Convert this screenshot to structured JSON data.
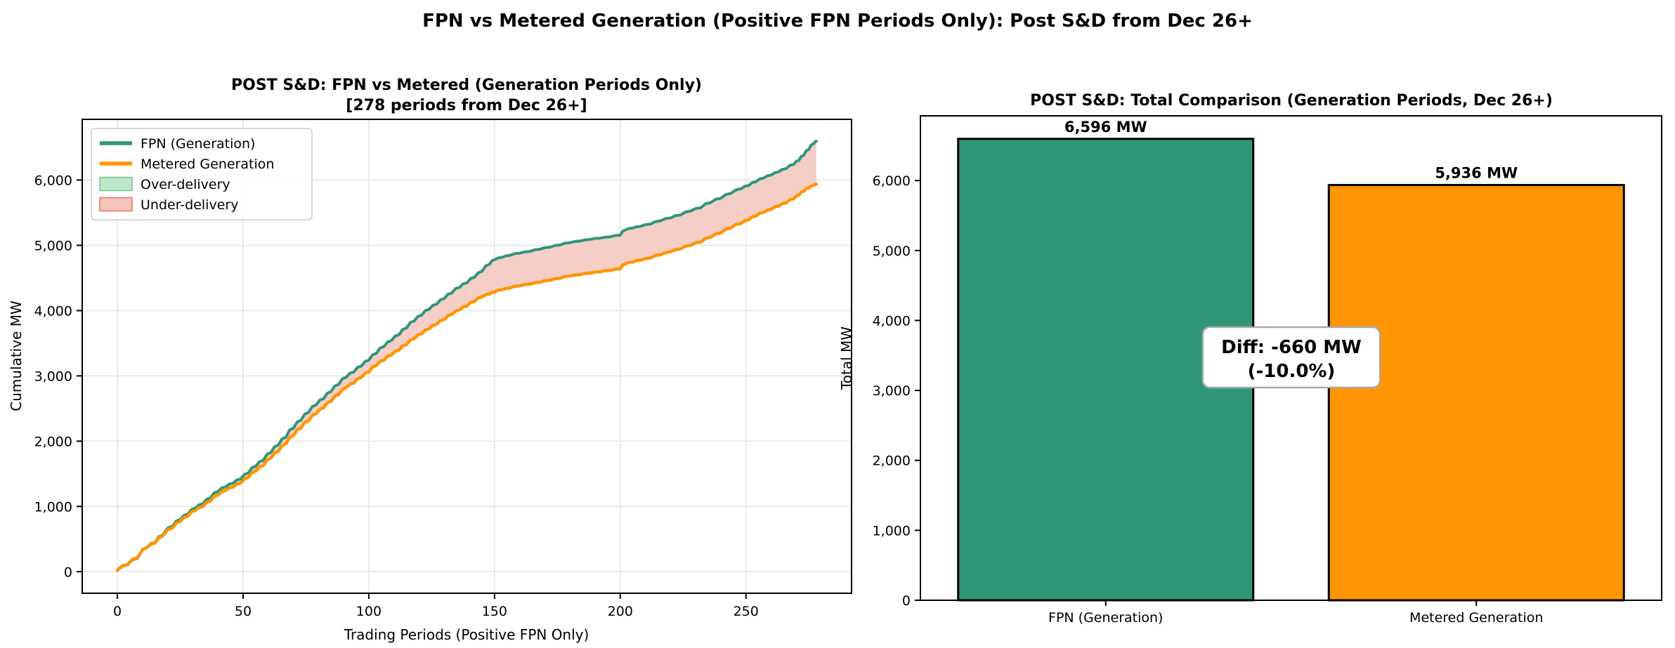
{
  "suptitle": "FPN vs Metered Generation (Positive FPN Periods Only): Post S&D from Dec 26+",
  "colors": {
    "fpn": "#2F9678",
    "metered": "#FF9500",
    "under_fill": "#F5CEC7",
    "over_fill": "#C7EBD3",
    "legend_over_fill": "#BCE7C8",
    "legend_over_edge": "#7CC894",
    "legend_under_fill": "#F5C4BC",
    "legend_under_edge": "#E2756A",
    "grid": "#E5E5E5",
    "spine": "#000000",
    "bar_edge": "#000000",
    "diff_text": "#FF0000",
    "diff_box_edge": "#AAAAAA",
    "diff_box_fill": "#FFFFFF"
  },
  "chart_data": [
    {
      "type": "line",
      "title_line1": "POST S&D: FPN vs Metered (Generation Periods Only)",
      "title_line2": "[278 periods from Dec 26+]",
      "xlabel": "Trading Periods (Positive FPN Only)",
      "ylabel": "Cumulative MW",
      "xlim": [
        -14,
        292
      ],
      "ylim": [
        -330,
        6930
      ],
      "grid": true,
      "legend_position": "upper left",
      "legend_labels": [
        "FPN (Generation)",
        "Metered Generation",
        "Over-delivery",
        "Under-delivery"
      ],
      "x_tick_values": [
        0,
        50,
        100,
        150,
        200,
        250
      ],
      "x_tick_labels": [
        "0",
        "50",
        "100",
        "150",
        "200",
        "250"
      ],
      "y_tick_values": [
        0,
        1000,
        2000,
        3000,
        4000,
        5000,
        6000
      ],
      "y_tick_labels": [
        "0",
        "1,000",
        "2,000",
        "3,000",
        "4,000",
        "5,000",
        "6,000"
      ],
      "x": [
        0,
        4,
        8,
        12,
        15,
        18,
        22,
        25,
        28,
        31,
        34,
        37,
        40,
        43,
        46,
        49,
        52,
        55,
        58,
        61,
        64,
        67,
        70,
        73,
        76,
        79,
        82,
        85,
        88,
        91,
        94,
        97,
        100,
        103,
        106,
        109,
        112,
        115,
        118,
        121,
        124,
        127,
        130,
        133,
        136,
        139,
        142,
        145,
        148,
        150,
        153,
        156,
        160,
        164,
        168,
        172,
        176,
        180,
        184,
        188,
        192,
        196,
        200,
        202,
        205,
        208,
        212,
        216,
        220,
        224,
        228,
        232,
        236,
        240,
        244,
        248,
        251,
        254,
        257,
        260,
        263,
        266,
        269,
        271,
        273,
        275,
        277,
        278
      ],
      "series": [
        {
          "name": "FPN (Generation)",
          "color": "#2F9678",
          "values": [
            20,
            105,
            205,
            380,
            450,
            560,
            700,
            800,
            880,
            975,
            1040,
            1130,
            1230,
            1300,
            1355,
            1420,
            1510,
            1615,
            1705,
            1825,
            1940,
            2060,
            2200,
            2320,
            2440,
            2555,
            2650,
            2760,
            2870,
            2980,
            3060,
            3150,
            3240,
            3345,
            3450,
            3540,
            3630,
            3735,
            3840,
            3930,
            4020,
            4100,
            4185,
            4270,
            4355,
            4425,
            4510,
            4600,
            4710,
            4780,
            4815,
            4845,
            4880,
            4905,
            4940,
            4970,
            5005,
            5040,
            5065,
            5090,
            5110,
            5130,
            5155,
            5235,
            5265,
            5290,
            5325,
            5375,
            5420,
            5465,
            5525,
            5575,
            5655,
            5720,
            5795,
            5865,
            5915,
            5975,
            6030,
            6075,
            6125,
            6175,
            6240,
            6300,
            6380,
            6470,
            6560,
            6596
          ]
        },
        {
          "name": "Metered Generation",
          "color": "#FF9500",
          "values": [
            25,
            110,
            215,
            375,
            440,
            545,
            672,
            770,
            848,
            938,
            998,
            1082,
            1175,
            1243,
            1295,
            1358,
            1442,
            1540,
            1625,
            1738,
            1845,
            1958,
            2085,
            2200,
            2310,
            2420,
            2510,
            2612,
            2715,
            2818,
            2890,
            2975,
            3060,
            3160,
            3240,
            3320,
            3395,
            3480,
            3570,
            3645,
            3720,
            3790,
            3865,
            3940,
            4010,
            4070,
            4140,
            4210,
            4255,
            4285,
            4320,
            4345,
            4380,
            4405,
            4435,
            4465,
            4495,
            4530,
            4550,
            4575,
            4595,
            4615,
            4640,
            4715,
            4745,
            4770,
            4805,
            4855,
            4900,
            4945,
            5000,
            5050,
            5125,
            5190,
            5265,
            5335,
            5390,
            5450,
            5505,
            5550,
            5600,
            5650,
            5715,
            5770,
            5830,
            5880,
            5920,
            5936
          ]
        }
      ],
      "fills": [
        {
          "name": "Over-delivery",
          "rule": "metered_above_fpn",
          "fill": "#C7EBD3"
        },
        {
          "name": "Under-delivery",
          "rule": "fpn_above_metered",
          "fill": "#F5CEC7"
        }
      ]
    },
    {
      "type": "bar",
      "title": "POST S&D: Total Comparison (Generation Periods, Dec 26+)",
      "ylabel": "Total MW",
      "ylim": [
        0,
        6925
      ],
      "grid": false,
      "categories": [
        "FPN (Generation)",
        "Metered Generation"
      ],
      "values": [
        6596,
        5936
      ],
      "value_labels": [
        "6,596 MW",
        "5,936 MW"
      ],
      "bar_colors": [
        "#2F9678",
        "#FF9500"
      ],
      "y_tick_values": [
        0,
        1000,
        2000,
        3000,
        4000,
        5000,
        6000
      ],
      "y_tick_labels": [
        "0",
        "1,000",
        "2,000",
        "3,000",
        "4,000",
        "5,000",
        "6,000"
      ],
      "annotation": {
        "line1": "Diff: -660 MW",
        "line2": "(-10.0%)"
      }
    }
  ]
}
